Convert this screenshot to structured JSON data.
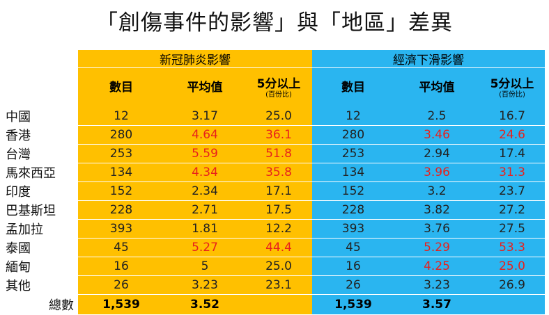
{
  "title": "「創傷事件的影響」與「地區」差異",
  "groups": {
    "covid": "新冠肺炎影響",
    "econ": "經濟下滑影響"
  },
  "columns": {
    "count": "數目",
    "mean": "平均值",
    "above5": "5分以上",
    "pct": "(百份比)"
  },
  "rows": [
    {
      "region": "中國",
      "c1": "12",
      "m1": "3.17",
      "p1": "25.0",
      "c2": "12",
      "m2": "2.5",
      "p2": "16.7",
      "r1": false,
      "r2": false
    },
    {
      "region": "香港",
      "c1": "280",
      "m1": "4.64",
      "p1": "36.1",
      "c2": "280",
      "m2": "3.46",
      "p2": "24.6",
      "r1": true,
      "r2": true
    },
    {
      "region": "台灣",
      "c1": "253",
      "m1": "5.59",
      "p1": "51.8",
      "c2": "253",
      "m2": "2.94",
      "p2": "17.4",
      "r1": true,
      "r2": false
    },
    {
      "region": "馬來西亞",
      "c1": "134",
      "m1": "4.34",
      "p1": "35.8",
      "c2": "134",
      "m2": "3.96",
      "p2": "31.3",
      "r1": true,
      "r2": true
    },
    {
      "region": "印度",
      "c1": "152",
      "m1": "2.34",
      "p1": "17.1",
      "c2": "152",
      "m2": "3.2",
      "p2": "23.7",
      "r1": false,
      "r2": false
    },
    {
      "region": "巴基斯坦",
      "c1": "228",
      "m1": "2.71",
      "p1": "17.5",
      "c2": "228",
      "m2": "3.82",
      "p2": "27.2",
      "r1": false,
      "r2": false
    },
    {
      "region": "孟加拉",
      "c1": "393",
      "m1": "1.81",
      "p1": "12.2",
      "c2": "393",
      "m2": "3.76",
      "p2": "27.5",
      "r1": false,
      "r2": false
    },
    {
      "region": "泰國",
      "c1": "45",
      "m1": "5.27",
      "p1": "44.4",
      "c2": "45",
      "m2": "5.29",
      "p2": "53.3",
      "r1": true,
      "r2": true
    },
    {
      "region": "緬甸",
      "c1": "16",
      "m1": "5",
      "p1": "25.0",
      "c2": "16",
      "m2": "4.25",
      "p2": "25.0",
      "r1": false,
      "r2": true
    },
    {
      "region": "其他",
      "c1": "26",
      "m1": "3.23",
      "p1": "23.1",
      "c2": "26",
      "m2": "3.23",
      "p2": "26.9",
      "r1": false,
      "r2": false
    }
  ],
  "total": {
    "label": "總數",
    "c1": "1,539",
    "m1": "3.52",
    "c2": "1,539",
    "m2": "3.57"
  },
  "colors": {
    "yellow": "#ffc000",
    "blue": "#2ab5f0",
    "red": "#e8201c"
  }
}
